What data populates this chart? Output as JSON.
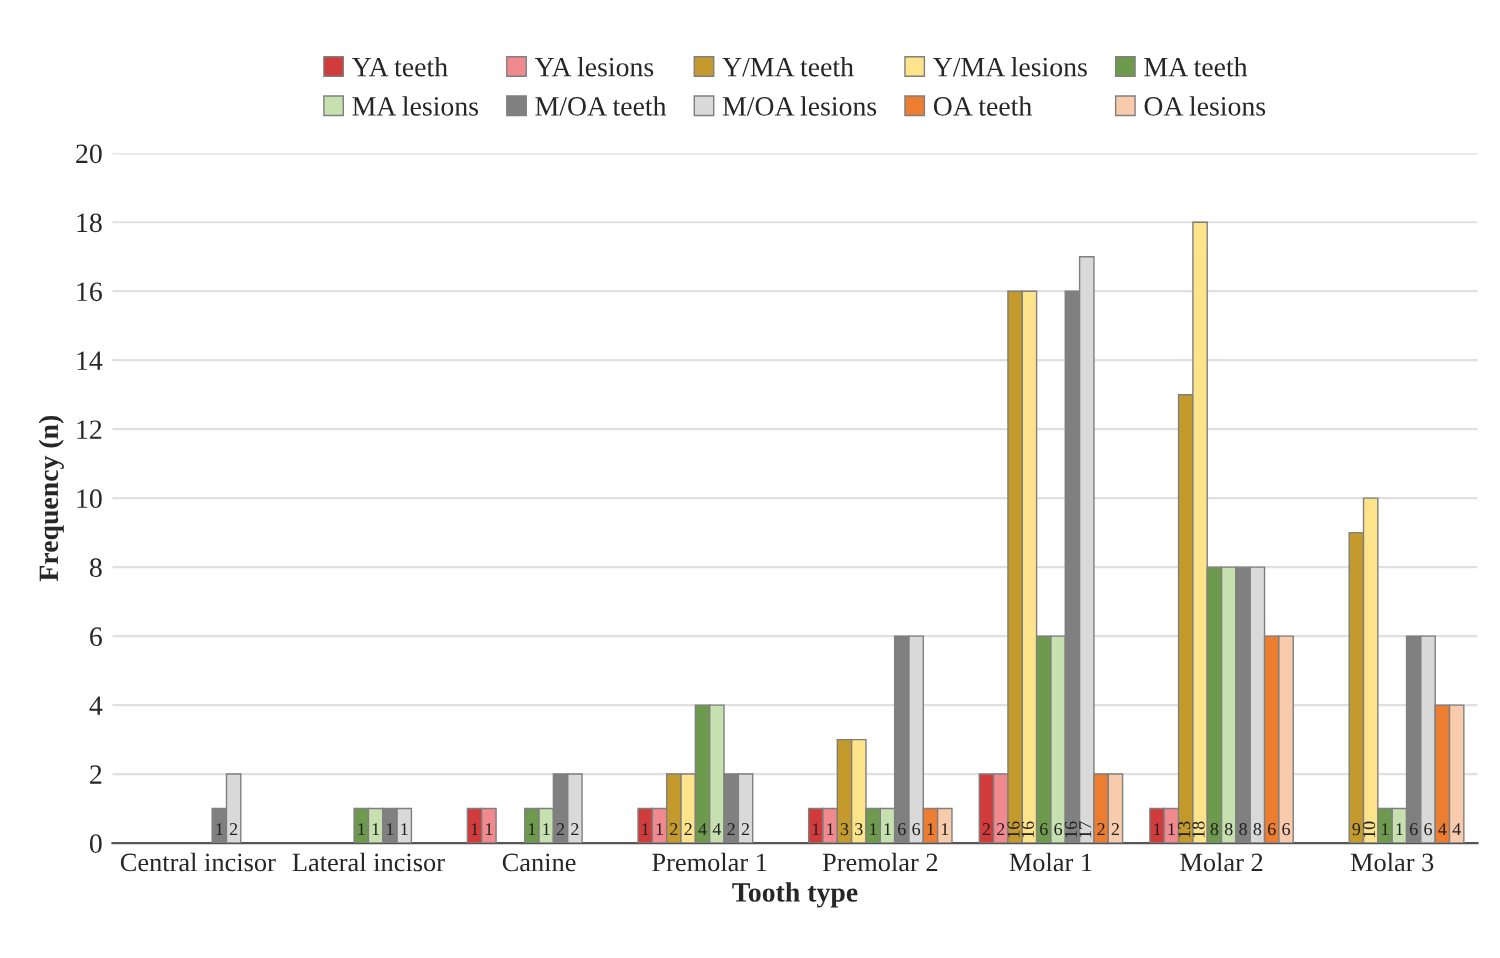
{
  "chart_data": {
    "type": "bar",
    "xlabel": "Tooth type",
    "ylabel": "Frequency (n)",
    "categories": [
      "Central incisor",
      "Lateral incisor",
      "Canine",
      "Premolar 1",
      "Premolar 2",
      "Molar 1",
      "Molar 2",
      "Molar 3"
    ],
    "series": [
      {
        "name": "YA teeth",
        "color": "#d13b3b",
        "values": [
          null,
          null,
          1,
          1,
          1,
          2,
          1,
          null
        ]
      },
      {
        "name": "YA lesions",
        "color": "#f08a8f",
        "values": [
          null,
          null,
          1,
          1,
          1,
          2,
          1,
          null
        ]
      },
      {
        "name": "Y/MA teeth",
        "color": "#c49a2c",
        "values": [
          null,
          null,
          null,
          2,
          3,
          16,
          13,
          9
        ]
      },
      {
        "name": "Y/MA lesions",
        "color": "#fde38a",
        "values": [
          null,
          null,
          null,
          2,
          3,
          16,
          18,
          10
        ]
      },
      {
        "name": "MA teeth",
        "color": "#6e9a4e",
        "values": [
          null,
          1,
          1,
          4,
          1,
          6,
          8,
          1
        ]
      },
      {
        "name": "MA lesions",
        "color": "#c6e0b0",
        "values": [
          null,
          1,
          1,
          4,
          1,
          6,
          8,
          1
        ]
      },
      {
        "name": "M/OA teeth",
        "color": "#808080",
        "values": [
          1,
          1,
          2,
          2,
          6,
          16,
          8,
          6
        ]
      },
      {
        "name": "M/OA lesions",
        "color": "#d9d9d9",
        "values": [
          2,
          1,
          2,
          2,
          6,
          17,
          8,
          6
        ]
      },
      {
        "name": "OA teeth",
        "color": "#ed7d31",
        "values": [
          null,
          null,
          null,
          null,
          1,
          2,
          6,
          4
        ]
      },
      {
        "name": "OA lesions",
        "color": "#f8cbad",
        "values": [
          null,
          null,
          null,
          null,
          1,
          2,
          6,
          4
        ]
      }
    ],
    "ylim": [
      0,
      20
    ],
    "yticks": [
      0,
      2,
      4,
      6,
      8,
      10,
      12,
      14,
      16,
      18,
      20
    ],
    "grid": "y",
    "legend": "top",
    "data_labels": true
  }
}
